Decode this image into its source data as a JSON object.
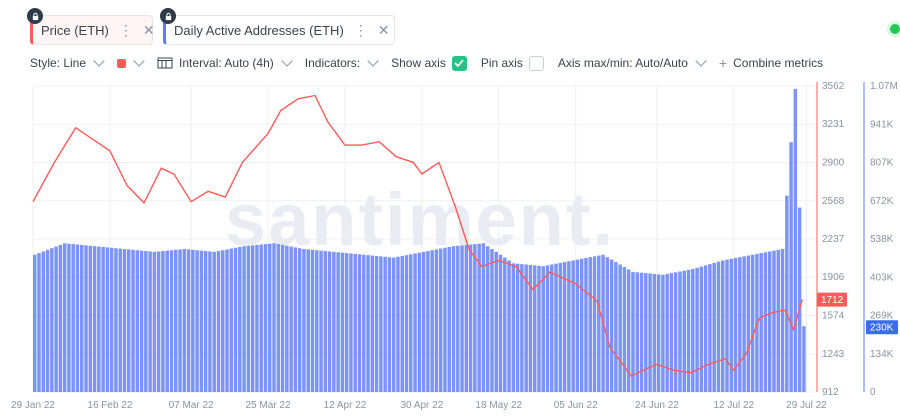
{
  "tabs": [
    {
      "label": "Price (ETH)",
      "color": "#ff5b5b"
    },
    {
      "label": "Daily Active Addresses (ETH)",
      "color": "#5f7cf7"
    }
  ],
  "toolbar": {
    "style": "Style: Line",
    "interval": "Interval: Auto (4h)",
    "indicators": "Indicators:",
    "show_axis": "Show axis",
    "pin_axis": "Pin axis",
    "axis_maxmin": "Axis max/min: Auto/Auto",
    "combine": "Combine metrics"
  },
  "watermark": "santiment.",
  "chart_data": {
    "type": "line",
    "x_tick_labels": [
      "29 Jan 22",
      "16 Feb 22",
      "07 Mar 22",
      "25 Mar 22",
      "12 Apr 22",
      "30 Apr 22",
      "18 May 22",
      "05 Jun 22",
      "24 Jun 22",
      "12 Jul 22",
      "29 Jul 22"
    ],
    "price_axis_ticks": [
      "3562",
      "3231",
      "2900",
      "2568",
      "2237",
      "1906",
      "1574",
      "1243",
      "912"
    ],
    "daa_axis_ticks": [
      "1.07M",
      "941K",
      "807K",
      "672K",
      "538K",
      "403K",
      "269K",
      "134K",
      "0"
    ],
    "price_range": [
      912,
      3562
    ],
    "daa_range": [
      0,
      1070000
    ],
    "series": [
      {
        "name": "Price (ETH)",
        "type": "line",
        "color": "#ff5b5b",
        "last_value_label": "1712",
        "points": [
          [
            "29 Jan 22",
            2560
          ],
          [
            "03 Feb 22",
            2900
          ],
          [
            "08 Feb 22",
            3200
          ],
          [
            "12 Feb 22",
            3100
          ],
          [
            "16 Feb 22",
            3000
          ],
          [
            "20 Feb 22",
            2700
          ],
          [
            "24 Feb 22",
            2550
          ],
          [
            "28 Feb 22",
            2850
          ],
          [
            "03 Mar 22",
            2800
          ],
          [
            "07 Mar 22",
            2560
          ],
          [
            "11 Mar 22",
            2650
          ],
          [
            "15 Mar 22",
            2600
          ],
          [
            "19 Mar 22",
            2900
          ],
          [
            "25 Mar 22",
            3150
          ],
          [
            "28 Mar 22",
            3350
          ],
          [
            "01 Apr 22",
            3450
          ],
          [
            "05 Apr 22",
            3480
          ],
          [
            "08 Apr 22",
            3250
          ],
          [
            "12 Apr 22",
            3050
          ],
          [
            "16 Apr 22",
            3050
          ],
          [
            "20 Apr 22",
            3080
          ],
          [
            "24 Apr 22",
            2950
          ],
          [
            "28 Apr 22",
            2900
          ],
          [
            "30 Apr 22",
            2800
          ],
          [
            "04 May 22",
            2900
          ],
          [
            "08 May 22",
            2500
          ],
          [
            "11 May 22",
            2150
          ],
          [
            "14 May 22",
            2000
          ],
          [
            "18 May 22",
            2050
          ],
          [
            "22 May 22",
            2000
          ],
          [
            "26 May 22",
            1800
          ],
          [
            "30 May 22",
            1950
          ],
          [
            "05 Jun 22",
            1850
          ],
          [
            "10 Jun 22",
            1700
          ],
          [
            "13 Jun 22",
            1300
          ],
          [
            "18 Jun 22",
            1050
          ],
          [
            "22 Jun 22",
            1120
          ],
          [
            "24 Jun 22",
            1150
          ],
          [
            "28 Jun 22",
            1100
          ],
          [
            "02 Jul 22",
            1080
          ],
          [
            "06 Jul 22",
            1150
          ],
          [
            "10 Jul 22",
            1200
          ],
          [
            "12 Jul 22",
            1100
          ],
          [
            "15 Jul 22",
            1250
          ],
          [
            "18 Jul 22",
            1550
          ],
          [
            "21 Jul 22",
            1600
          ],
          [
            "24 Jul 22",
            1620
          ],
          [
            "26 Jul 22",
            1450
          ],
          [
            "28 Jul 22",
            1712
          ]
        ]
      },
      {
        "name": "Daily Active Addresses (ETH)",
        "type": "bar",
        "color": "#5f7cf7",
        "last_value_label": "230K",
        "points": [
          [
            "29 Jan 22",
            480000
          ],
          [
            "05 Feb 22",
            520000
          ],
          [
            "12 Feb 22",
            510000
          ],
          [
            "19 Feb 22",
            500000
          ],
          [
            "26 Feb 22",
            490000
          ],
          [
            "05 Mar 22",
            500000
          ],
          [
            "12 Mar 22",
            490000
          ],
          [
            "19 Mar 22",
            510000
          ],
          [
            "26 Mar 22",
            520000
          ],
          [
            "02 Apr 22",
            500000
          ],
          [
            "09 Apr 22",
            490000
          ],
          [
            "16 Apr 22",
            480000
          ],
          [
            "23 Apr 22",
            470000
          ],
          [
            "30 Apr 22",
            490000
          ],
          [
            "07 May 22",
            510000
          ],
          [
            "14 May 22",
            520000
          ],
          [
            "21 May 22",
            450000
          ],
          [
            "28 May 22",
            440000
          ],
          [
            "04 Jun 22",
            460000
          ],
          [
            "11 Jun 22",
            480000
          ],
          [
            "18 Jun 22",
            420000
          ],
          [
            "25 Jun 22",
            410000
          ],
          [
            "02 Jul 22",
            430000
          ],
          [
            "09 Jul 22",
            460000
          ],
          [
            "16 Jul 22",
            480000
          ],
          [
            "23 Jul 22",
            500000
          ],
          [
            "26 Jul 22",
            1060000
          ],
          [
            "28 Jul 22",
            230000
          ]
        ]
      }
    ],
    "grid": true,
    "legend": "top-left tabs"
  }
}
